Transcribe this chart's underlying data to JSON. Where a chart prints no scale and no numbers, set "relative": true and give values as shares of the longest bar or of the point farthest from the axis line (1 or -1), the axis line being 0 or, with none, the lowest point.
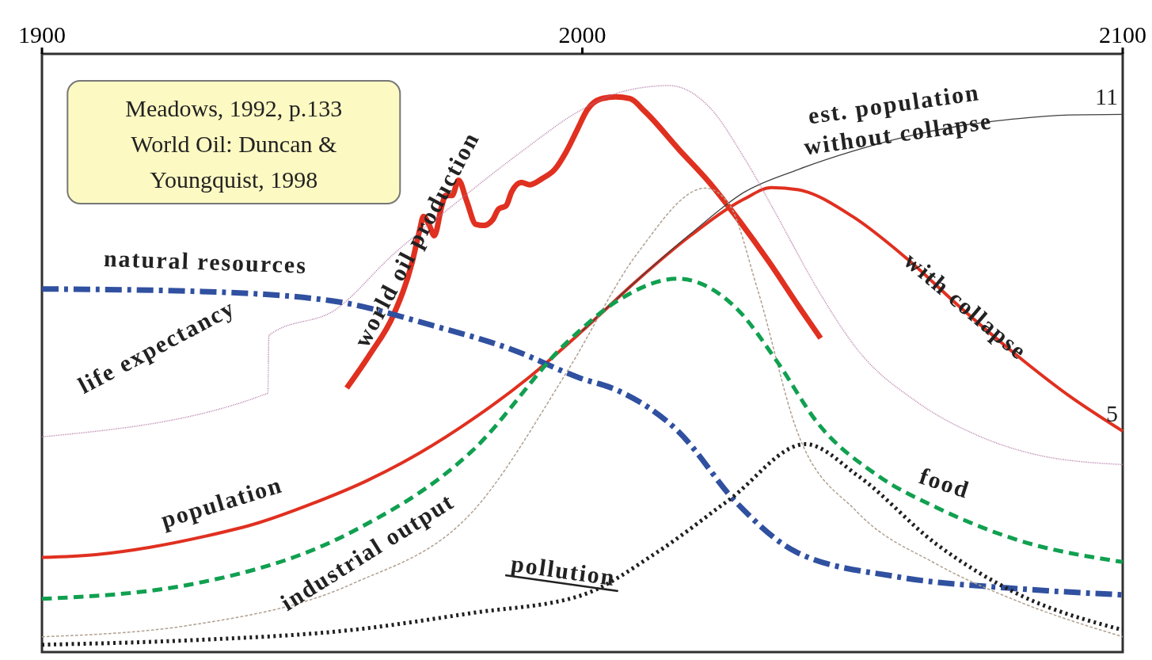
{
  "chart_data": {
    "type": "line",
    "relative": true,
    "xlim": [
      1900,
      2100
    ],
    "xticks": [
      1900,
      2000,
      2100
    ],
    "grid": false,
    "legend": false,
    "annotations": [
      "Meadows, 1992, p.133\nWorld Oil: Duncan &\nYoungquist, 1998",
      "with collapse",
      {
        "text": "11",
        "x": 2100,
        "y": 0.949
      },
      {
        "text": "5",
        "x": 2100,
        "y": 0.39
      }
    ],
    "series": [
      {
        "name": "world oil production",
        "color": "#e03020",
        "line_style": "solid",
        "x": [
          1956.4,
          1960.8,
          1965.0,
          1968.5,
          1969.9,
          1970.6,
          1971.7,
          1972.6,
          1974.0,
          1974.7,
          1975.9,
          1977.1,
          1978.6,
          1980.3,
          1981.7,
          1983.4,
          1984.5,
          1985.9,
          1986.9,
          1988.7,
          1990.3,
          1992.6,
          1994.9,
          1997.0,
          1999.1,
          2000.9,
          2003.3,
          2006.1,
          2008.8,
          2011.6,
          2017.9,
          2023.5,
          2029.0,
          2034.6,
          2040.2,
          2044.1
        ],
        "values": [
          0.466,
          0.527,
          0.594,
          0.688,
          0.745,
          0.769,
          0.753,
          0.735,
          0.788,
          0.806,
          0.806,
          0.833,
          0.796,
          0.755,
          0.753,
          0.763,
          0.782,
          0.788,
          0.812,
          0.829,
          0.825,
          0.836,
          0.852,
          0.883,
          0.923,
          0.957,
          0.976,
          0.98,
          0.977,
          0.954,
          0.887,
          0.829,
          0.762,
          0.688,
          0.608,
          0.554
        ]
      },
      {
        "name": "population",
        "color": "#e03020",
        "line_style": "solid",
        "x": [
          1900,
          1910,
          1920,
          1930,
          1940,
          1950,
          1960,
          1970,
          1980,
          1990,
          2000,
          2010,
          2020,
          2030,
          2035,
          2040,
          2050,
          2060,
          2070,
          2080,
          2090,
          2100
        ],
        "values": [
          0.167,
          0.172,
          0.185,
          0.204,
          0.228,
          0.262,
          0.302,
          0.352,
          0.413,
          0.484,
          0.567,
          0.655,
          0.735,
          0.8,
          0.82,
          0.816,
          0.769,
          0.695,
          0.608,
          0.527,
          0.453,
          0.39
        ]
      },
      {
        "name": "est. population\nwithout collapse",
        "color": "#404040",
        "line_style": "solid",
        "x": [
          2000,
          2010,
          2020,
          2030,
          2040,
          2050,
          2060,
          2070,
          2080,
          2090,
          2100
        ],
        "values": [
          0.567,
          0.655,
          0.738,
          0.812,
          0.852,
          0.884,
          0.91,
          0.929,
          0.941,
          0.948,
          0.949
        ]
      },
      {
        "name": "natural resources",
        "color": "#3050a0",
        "line_style": "dashdot",
        "x": [
          1900,
          1927.8,
          1953.7,
          1972.1,
          1987.0,
          1999.5,
          2006.5,
          2017.6,
          2028.7,
          2039.7,
          2058.2,
          2080.5,
          2100
        ],
        "values": [
          0.641,
          0.637,
          0.62,
          0.577,
          0.534,
          0.484,
          0.462,
          0.391,
          0.262,
          0.176,
          0.133,
          0.112,
          0.101
        ]
      },
      {
        "name": "life expectancy",
        "color": "#b070a0",
        "line_style": "dotted",
        "x": [
          1900,
          1941.8,
          1942.0,
          1954.4,
          1965.0,
          1976.1,
          1988.7,
          1999.8,
          2008.1,
          2016.1,
          2023.5,
          2030.1,
          2036.1,
          2043.5,
          2050.9,
          2062.0,
          2073.0,
          2084.2,
          2100
        ],
        "values": [
          0.38,
          0.457,
          0.559,
          0.605,
          0.702,
          0.789,
          0.883,
          0.957,
          0.991,
          1.0,
          0.962,
          0.87,
          0.769,
          0.641,
          0.534,
          0.441,
          0.383,
          0.348,
          0.331
        ]
      },
      {
        "name": "industrial output",
        "color": "#b0a090",
        "line_style": "dashed",
        "x": [
          1900,
          1927.8,
          1957.3,
          1979.6,
          1997.3,
          2010.2,
          2022.8,
          2027.2,
          2032.4,
          2039.7,
          2050.9,
          2065.6,
          2080.5,
          2100
        ],
        "values": [
          0.027,
          0.048,
          0.12,
          0.247,
          0.497,
          0.704,
          0.819,
          0.79,
          0.641,
          0.391,
          0.247,
          0.155,
          0.09,
          0.027
        ]
      },
      {
        "name": "food",
        "color": "#10a050",
        "line_style": "dashed",
        "x": [
          1900,
          1927.8,
          1957.3,
          1979.6,
          1997.3,
          2006.5,
          2017.6,
          2028.7,
          2036.1,
          2043.5,
          2054.6,
          2065.6,
          2080.5,
          2100
        ],
        "values": [
          0.094,
          0.12,
          0.212,
          0.355,
          0.548,
          0.62,
          0.659,
          0.605,
          0.512,
          0.405,
          0.312,
          0.255,
          0.198,
          0.159
        ]
      },
      {
        "name": "pollution",
        "color": "#202020",
        "line_style": "dotted",
        "x": [
          1900,
          1927.8,
          1957.3,
          1979.6,
          1999.8,
          2013.8,
          2027.2,
          2041.3,
          2050.9,
          2065.6,
          2080.5,
          2100
        ],
        "values": [
          0.013,
          0.021,
          0.039,
          0.069,
          0.1,
          0.176,
          0.269,
          0.367,
          0.312,
          0.19,
          0.103,
          0.039
        ]
      }
    ]
  }
}
